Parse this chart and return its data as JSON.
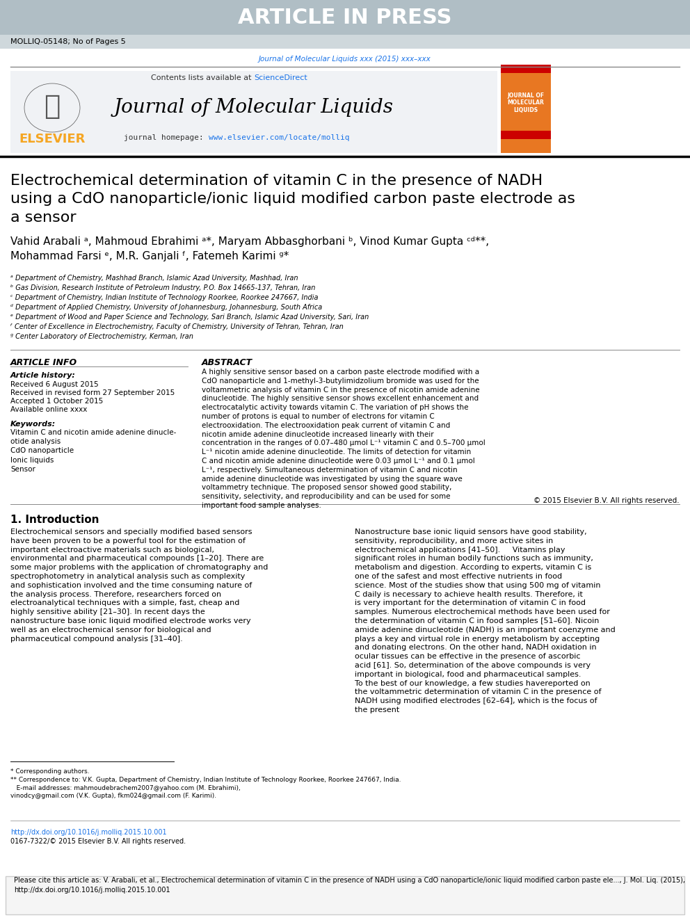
{
  "fig_width": 9.92,
  "fig_height": 13.23,
  "bg_color": "#ffffff",
  "header_bg": "#b0bec5",
  "header_text": "ARTICLE IN PRESS",
  "header_text_color": "#ffffff",
  "header_subtext": "MOLLIQ-05148; No of Pages 5",
  "journal_ref_text": "Journal of Molecular Liquids xxx (2015) xxx–xxx",
  "journal_ref_color": "#1a73e8",
  "journal_name": "Journal of Molecular Liquids",
  "contents_text": "Contents lists available at ",
  "sciencedirect_text": "ScienceDirect",
  "sciencedirect_color": "#1a73e8",
  "homepage_text": "journal homepage: ",
  "homepage_url": "www.elsevier.com/locate/molliq",
  "homepage_url_color": "#1a73e8",
  "elsevier_text": "ELSEVIER",
  "elsevier_color": "#f5a623",
  "article_title": "Electrochemical determination of vitamin C in the presence of NADH\nusing a CdO nanoparticle/ionic liquid modified carbon paste electrode as\na sensor",
  "authors": "Vahid Arabali ᵃ, Mahmoud Ebrahimi ᵃ*, Maryam Abbasghorbani ᵇ, Vinod Kumar Gupta ᶜᵈ**,\nMohammad Farsi ᵉ, M.R. Ganjali ᶠ, Fatemeh Karimi ᵍ*",
  "affiliations": [
    "ᵃ Department of Chemistry, Mashhad Branch, Islamic Azad University, Mashhad, Iran",
    "ᵇ Gas Division, Research Institute of Petroleum Industry, P.O. Box 14665-137, Tehran, Iran",
    "ᶜ Department of Chemistry, Indian Institute of Technology Roorkee, Roorkee 247667, India",
    "ᵈ Department of Applied Chemistry, University of Johannesburg, Johannesburg, South Africa",
    "ᵉ Department of Wood and Paper Science and Technology, Sari Branch, Islamic Azad University, Sari, Iran",
    "ᶠ Center of Excellence in Electrochemistry, Faculty of Chemistry, University of Tehran, Tehran, Iran",
    "ᵍ Center Laboratory of Electrochemistry, Kerman, Iran"
  ],
  "article_info_title": "ARTICLE INFO",
  "article_history_title": "Article history:",
  "received": "Received 6 August 2015",
  "revised": "Received in revised form 27 September 2015",
  "accepted": "Accepted 1 October 2015",
  "available": "Available online xxxx",
  "keywords_title": "Keywords:",
  "keywords": "Vitamin C and nicotin amide adenine dinucle-\notide analysis\nCdO nanoparticle\nIonic liquids\nSensor",
  "abstract_title": "ABSTRACT",
  "abstract_text": "A highly sensitive sensor based on a carbon paste electrode modified with a CdO nanoparticle and 1-methyl-3-butylimidzolium bromide was used for the voltammetric analysis of vitamin C in the presence of nicotin amide adenine dinucleotide. The highly sensitive sensor shows excellent enhancement and electrocatalytic activity towards vitamin C. The variation of pH shows the number of protons is equal to number of electrons for vitamin C electrooxidation. The electrooxidation peak current of vitamin C and nicotin amide adenine dinucleotide increased linearly with their concentration in the ranges of 0.07–480 μmol L⁻¹ vitamin C and 0.5–700 μmol L⁻¹ nicotin amide adenine dinucleotide. The limits of detection for vitamin C and nicotin amide adenine dinucleotide were 0.03 μmol L⁻¹ and 0.1 μmol L⁻¹, respectively. Simultaneous determination of vitamin C and nicotin amide adenine dinucleotide was investigated by using the square wave voltammetry technique. The proposed sensor showed good stability, sensitivity, selectivity, and reproducibility and can be used for some important food sample analyses.",
  "copyright_text": "© 2015 Elsevier B.V. All rights reserved.",
  "intro_title": "1. Introduction",
  "intro_col1": "Electrochemical sensors and specially modified based sensors have been proven to be a powerful tool for the estimation of important electroactive materials such as biological, environmental and pharmaceutical compounds [1–20]. There are some major problems with the application of chromatography and spectrophotometry in analytical analysis such as complexity and sophistication involved and the time consuming nature of the analysis process. Therefore, researchers forced on electroanalytical techniques with a simple, fast, cheap and highly sensitive ability [21–30]. In recent days the nanostructure base ionic liquid modified electrode works very well as an electrochemical sensor for biological and pharmaceutical compound analysis [31–40].",
  "intro_col2": "Nanostructure base ionic liquid sensors have good stability, sensitivity, reproducibility, and more active sites in electrochemical applications [41–50].\n    Vitamins play significant roles in human bodily functions such as immunity, metabolism and digestion. According to experts, vitamin C is one of the safest and most effective nutrients in food science. Most of the studies show that using 500 mg of vitamin C daily is necessary to achieve health results. Therefore, it is very important for the determination of vitamin C in food samples. Numerous electrochemical methods have been used for the determination of vitamin C in food samples [51–60]. Nicoin amide adenine dinucleotide (NADH) is an important coenzyme and plays a key and virtual role in energy metabolism by accepting and donating electrons. On the other hand, NADH oxidation in ocular tissues can be effective in the presence of ascorbic acid [61]. So, determination of the above compounds is very important in biological, food and pharmaceutical samples.\n    To the best of our knowledge, a few studies havereported on the voltammetric determination of vitamin C in the presence of NADH using modified electrodes [62–64], which is the focus of the present",
  "footer_text": "Please cite this article as: V. Arabali, et al., Electrochemical determination of vitamin C in the presence of NADH using a CdO nanoparticle/ionic liquid modified carbon paste ele..., J. Mol. Liq. (2015), http://dx.doi.org/10.1016/j.molliq.2015.10.001",
  "doi_text": "http://dx.doi.org/10.1016/j.molliq.2015.10.001",
  "doi_color": "#1a73e8",
  "issn_text": "0167-7322/© 2015 Elsevier B.V. All rights reserved.",
  "corresponding_notes": "* Corresponding authors.\n** Correspondence to: V.K. Gupta, Department of Chemistry, Indian Institute of Technology Roorkee, Roorkee 247667, India.\n   E-mail addresses: mahmoudebrachem2007@yahoo.com (M. Ebrahimi),\nvinodcy@gmail.com (V.K. Gupta), fkm024@gmail.com (F. Karimi).",
  "orange_color": "#E87722",
  "light_gray_bg": "#eceff1"
}
